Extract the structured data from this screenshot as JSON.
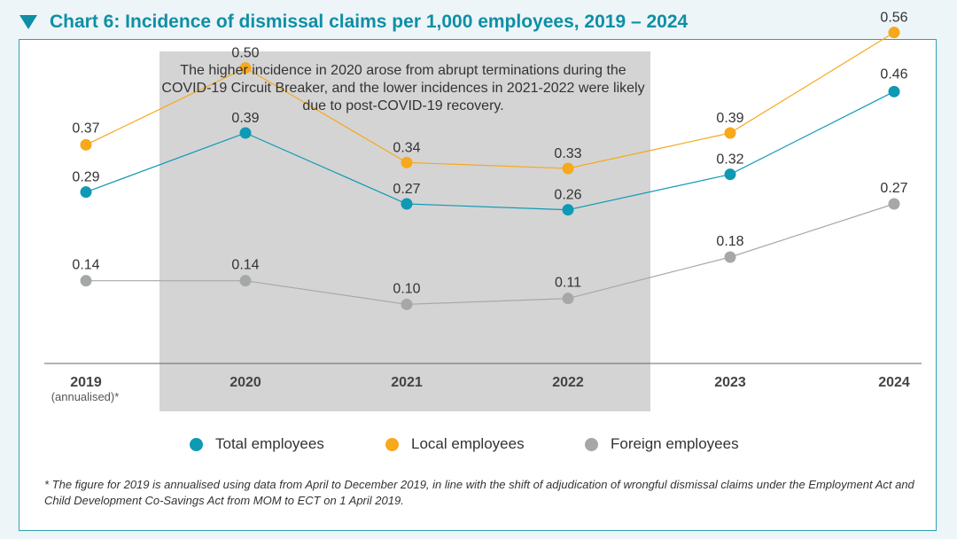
{
  "title": "Chart 6: Incidence of dismissal claims per 1,000 employees, 2019 – 2024",
  "annotation": "The higher incidence in 2020 arose from abrupt terminations during the COVID-19 Circuit Breaker, and the lower incidences in 2021-2022 were likely due to post-COVID-19 recovery.",
  "footnote": "* The figure for 2019 is annualised using data from April to December 2019, in line with the shift of adjudication of wrongful dismissal claims under the Employment Act and Child Development Co-Savings Act from MOM to ECT on 1 April 2019.",
  "colors": {
    "accent": "#0e8fa6",
    "highlight_band": "#d4d4d4"
  },
  "chart_data": {
    "type": "line",
    "title": "Chart 6: Incidence of dismissal claims per 1,000 employees, 2019 – 2024",
    "categories": [
      "2019",
      "2020",
      "2021",
      "2022",
      "2023",
      "2024"
    ],
    "category_sublabels": [
      "(annualised)*",
      "",
      "",
      "",
      "",
      ""
    ],
    "highlight_categories": [
      "2020",
      "2021",
      "2022"
    ],
    "ylim": [
      0,
      0.6
    ],
    "grid": false,
    "legend_position": "bottom",
    "series": [
      {
        "name": "Total employees",
        "color": "#0e99b5",
        "values": [
          0.29,
          0.39,
          0.27,
          0.26,
          0.32,
          0.46
        ],
        "labels": [
          "0.29",
          "0.39",
          "0.27",
          "0.26",
          "0.32",
          "0.46"
        ]
      },
      {
        "name": "Local employees",
        "color": "#f7a81b",
        "values": [
          0.37,
          0.5,
          0.34,
          0.33,
          0.39,
          0.56
        ],
        "labels": [
          "0.37",
          "0.50",
          "0.34",
          "0.33",
          "0.39",
          "0.56"
        ]
      },
      {
        "name": "Foreign employees",
        "color": "#a6a8a8",
        "values": [
          0.14,
          0.14,
          0.1,
          0.11,
          0.18,
          0.27
        ],
        "labels": [
          "0.14",
          "0.14",
          "0.10",
          "0.11",
          "0.18",
          "0.27"
        ]
      }
    ]
  }
}
